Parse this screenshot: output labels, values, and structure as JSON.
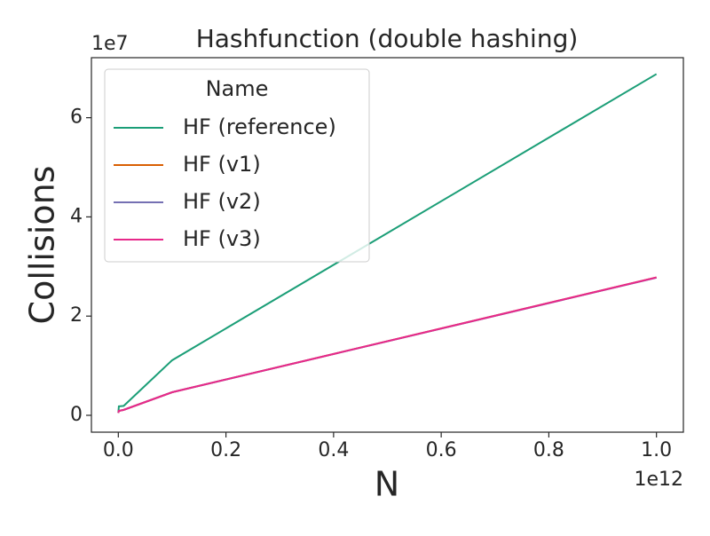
{
  "chart_data": {
    "type": "line",
    "title": "Hashfunction (double hashing)",
    "xlabel": "N",
    "ylabel": "Collisions",
    "x_offset_label": "1e12",
    "y_offset_label": "1e7",
    "legend_title": "Name",
    "legend_position": "upper left",
    "x": [
      1000000,
      1000000000,
      10000000000,
      100000000000,
      1000000000000
    ],
    "series": [
      {
        "name": "HF (reference)",
        "color": "#1b9e77",
        "values": [
          500000,
          1800000,
          1900000,
          11100000,
          68800000
        ]
      },
      {
        "name": "HF (v1)",
        "color": "#d95f02",
        "values": [
          500000,
          900000,
          1100000,
          4650000,
          27800000
        ]
      },
      {
        "name": "HF (v2)",
        "color": "#7570b3",
        "values": [
          500000,
          900000,
          1100000,
          4650000,
          27750000
        ]
      },
      {
        "name": "HF (v3)",
        "color": "#e7298a",
        "values": [
          500000,
          900000,
          1100000,
          4650000,
          27800000
        ]
      }
    ],
    "xlim": [
      -50000000000,
      1050000000000
    ],
    "ylim": [
      -3400000,
      72100000
    ],
    "xticks": [
      {
        "value": 0,
        "label": "0.0"
      },
      {
        "value": 200000000000,
        "label": "0.2"
      },
      {
        "value": 400000000000,
        "label": "0.4"
      },
      {
        "value": 600000000000,
        "label": "0.6"
      },
      {
        "value": 800000000000,
        "label": "0.8"
      },
      {
        "value": 1000000000000,
        "label": "1.0"
      }
    ],
    "yticks": [
      {
        "value": 0,
        "label": "0"
      },
      {
        "value": 20000000,
        "label": "2"
      },
      {
        "value": 40000000,
        "label": "4"
      },
      {
        "value": 60000000,
        "label": "6"
      }
    ]
  }
}
